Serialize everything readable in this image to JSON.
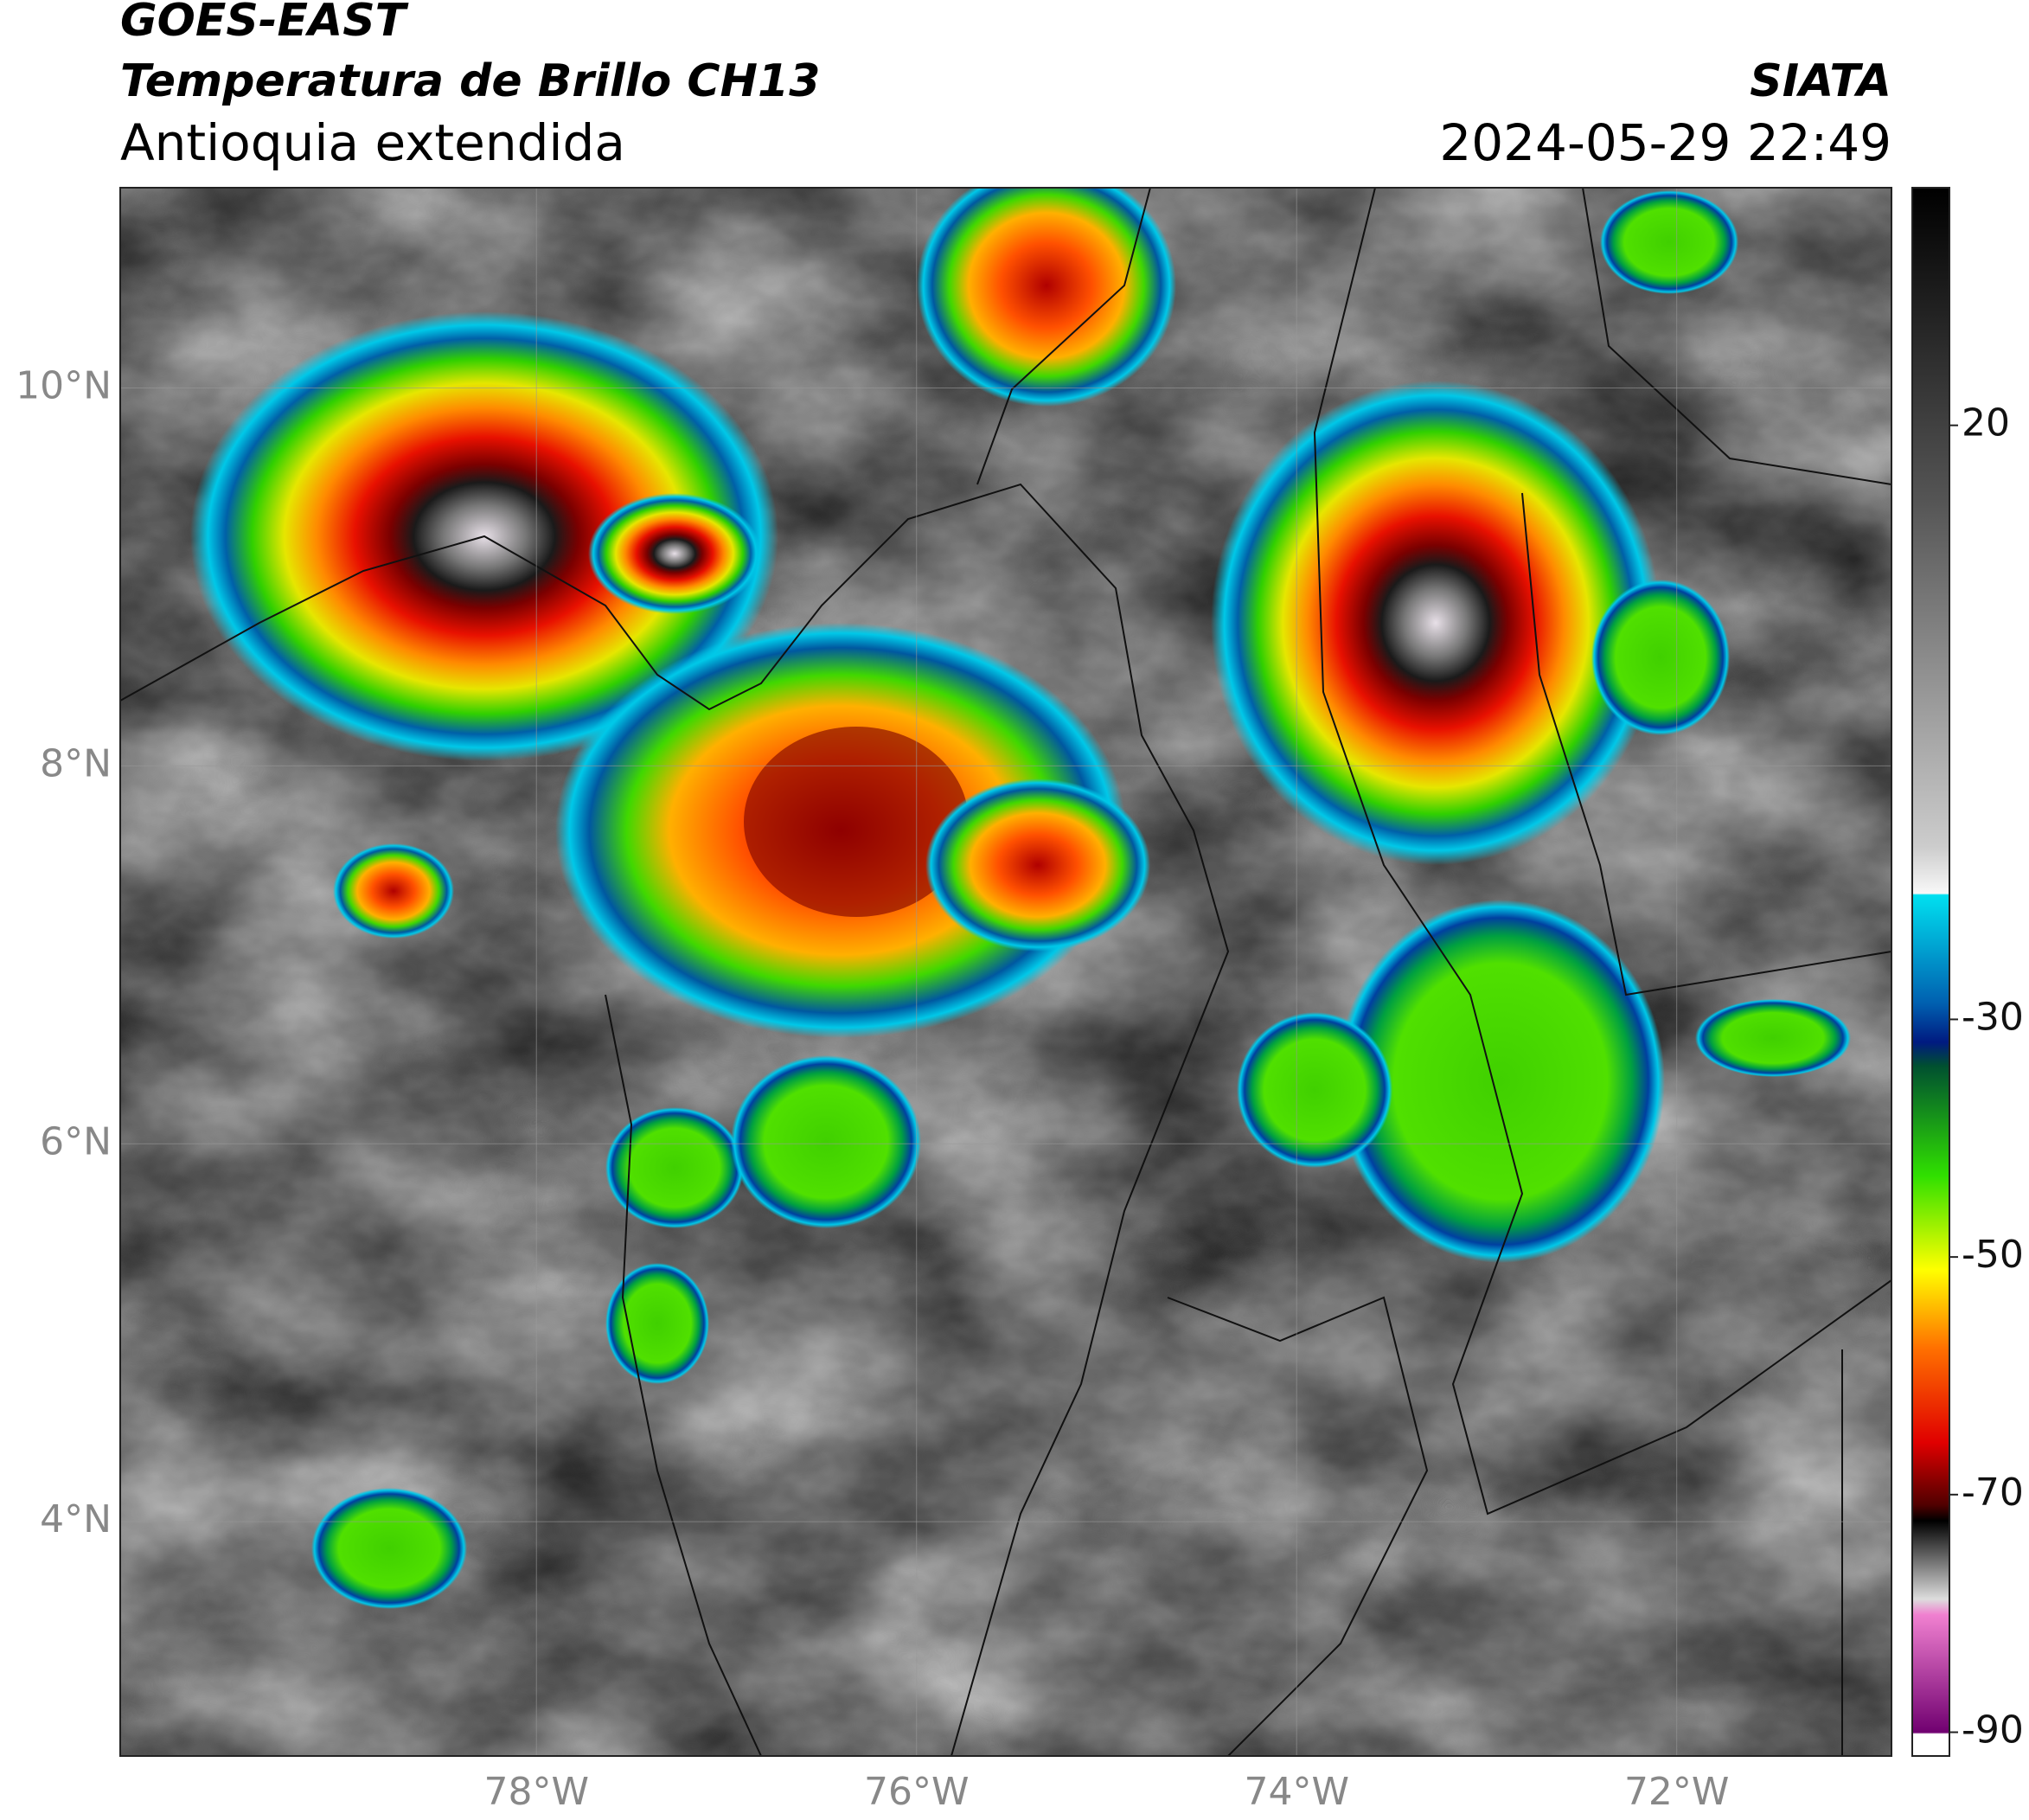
{
  "header": {
    "title": "GOES-EAST",
    "subtitle": "Temperatura de Brillo CH13",
    "region": "Antioquia extendida",
    "source": "SIATA",
    "datetime": "2024-05-29 22:49"
  },
  "map": {
    "xlim": [
      -80.19,
      -70.87
    ],
    "ylim": [
      2.76,
      11.06
    ],
    "xticks": [
      {
        "value": -78,
        "label": "78°W"
      },
      {
        "value": -76,
        "label": "76°W"
      },
      {
        "value": -74,
        "label": "74°W"
      },
      {
        "value": -72,
        "label": "72°W"
      }
    ],
    "yticks": [
      {
        "value": 10,
        "label": "10°N"
      },
      {
        "value": 8,
        "label": "8°N"
      },
      {
        "value": 6,
        "label": "6°N"
      },
      {
        "value": 4,
        "label": "4°N"
      }
    ],
    "grid": true
  },
  "colorbar": {
    "lim": [
      -92,
      40
    ],
    "ticks": [
      20,
      -30,
      -50,
      -70,
      -90
    ]
  }
}
